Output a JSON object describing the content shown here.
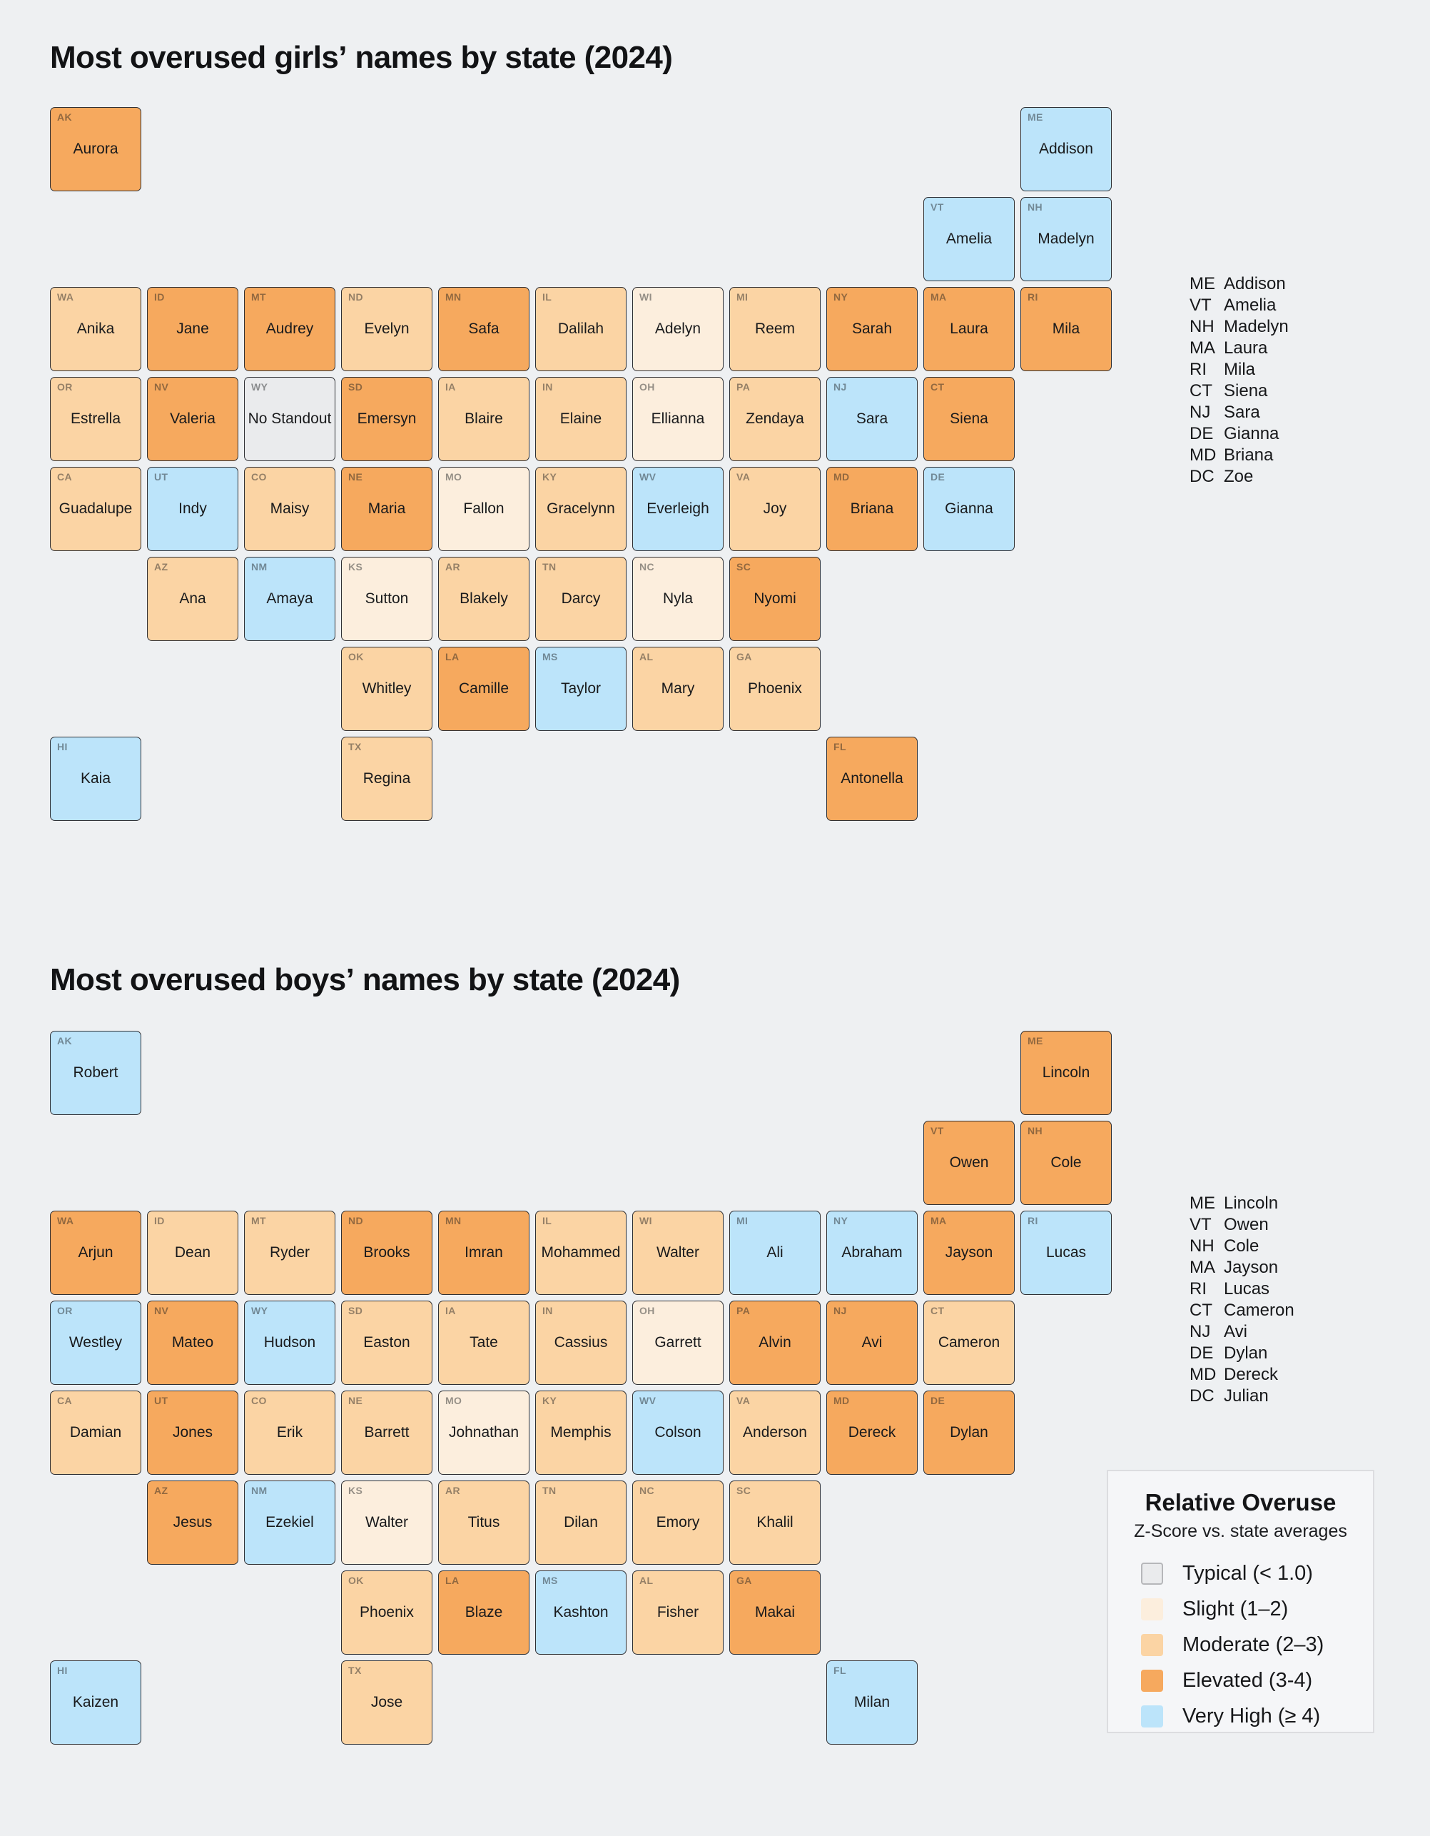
{
  "colors": {
    "page_background": "#eef0f2",
    "state_border": "#2f3034",
    "title_text": "#121315"
  },
  "legend": {
    "title": "Relative Overuse",
    "subtitle": "Z-Score vs. state averages",
    "items": [
      {
        "level": "typical",
        "label": "Typical (< 1.0)",
        "color": "#eaebed"
      },
      {
        "level": "slight",
        "label": "Slight (1–2)",
        "color": "#fceedd"
      },
      {
        "level": "moderate",
        "label": "Moderate (2–3)",
        "color": "#fbd4a4"
      },
      {
        "level": "elevated",
        "label": "Elevated (3-4)",
        "color": "#f6a95e"
      },
      {
        "level": "very_high",
        "label": "Very High (≥ 4)",
        "color": "#bce4fa"
      }
    ]
  },
  "chart_data": [
    {
      "id": "girls",
      "type": "heatmap",
      "variant": "us-state-choropleth",
      "title": "Most overused girls’ names by state (2024)",
      "title_prefix": "Most overused ",
      "title_bold": "girls’",
      "title_suffix": " names by state (2024)",
      "value_label": "Relative overuse z-score class",
      "states": [
        {
          "abbr": "WA",
          "name": "Anika",
          "level": "moderate"
        },
        {
          "abbr": "OR",
          "name": "Estrella",
          "level": "moderate"
        },
        {
          "abbr": "CA",
          "name": "Guadalupe",
          "level": "moderate"
        },
        {
          "abbr": "AK",
          "name": "Aurora",
          "level": "elevated"
        },
        {
          "abbr": "HI",
          "name": "Kaia",
          "level": "very_high"
        },
        {
          "abbr": "ID",
          "name": "Jane",
          "level": "elevated"
        },
        {
          "abbr": "NV",
          "name": "Valeria",
          "level": "elevated"
        },
        {
          "abbr": "MT",
          "name": "Audrey",
          "level": "elevated"
        },
        {
          "abbr": "WY",
          "name": "No Standout",
          "level": "typical"
        },
        {
          "abbr": "UT",
          "name": "Indy",
          "level": "very_high"
        },
        {
          "abbr": "AZ",
          "name": "Ana",
          "level": "moderate"
        },
        {
          "abbr": "NM",
          "name": "Amaya",
          "level": "very_high"
        },
        {
          "abbr": "CO",
          "name": "Maisy",
          "level": "moderate"
        },
        {
          "abbr": "ND",
          "name": "Evelyn",
          "level": "moderate"
        },
        {
          "abbr": "SD",
          "name": "Emersyn",
          "level": "elevated"
        },
        {
          "abbr": "NE",
          "name": "Maria",
          "level": "elevated"
        },
        {
          "abbr": "KS",
          "name": "Sutton",
          "level": "slight"
        },
        {
          "abbr": "OK",
          "name": "Whitley",
          "level": "moderate"
        },
        {
          "abbr": "TX",
          "name": "Regina",
          "level": "moderate"
        },
        {
          "abbr": "MN",
          "name": "Safa",
          "level": "elevated"
        },
        {
          "abbr": "IA",
          "name": "Blaire",
          "level": "moderate"
        },
        {
          "abbr": "MO",
          "name": "Fallon",
          "level": "slight"
        },
        {
          "abbr": "AR",
          "name": "Blakely",
          "level": "moderate"
        },
        {
          "abbr": "LA",
          "name": "Camille",
          "level": "elevated"
        },
        {
          "abbr": "WI",
          "name": "Adelyn",
          "level": "slight"
        },
        {
          "abbr": "IL",
          "name": "Dalilah",
          "level": "moderate"
        },
        {
          "abbr": "MI",
          "name": "Reem",
          "level": "moderate"
        },
        {
          "abbr": "IN",
          "name": "Elaine",
          "level": "moderate"
        },
        {
          "abbr": "OH",
          "name": "Ellianna",
          "level": "slight"
        },
        {
          "abbr": "KY",
          "name": "Gracelynn",
          "level": "moderate"
        },
        {
          "abbr": "TN",
          "name": "Darcy",
          "level": "moderate"
        },
        {
          "abbr": "MS",
          "name": "Taylor",
          "level": "very_high"
        },
        {
          "abbr": "AL",
          "name": "Mary",
          "level": "moderate"
        },
        {
          "abbr": "GA",
          "name": "Phoenix",
          "level": "moderate"
        },
        {
          "abbr": "FL",
          "name": "Antonella",
          "level": "elevated"
        },
        {
          "abbr": "SC",
          "name": "Nyomi",
          "level": "elevated"
        },
        {
          "abbr": "NC",
          "name": "Nyla",
          "level": "slight"
        },
        {
          "abbr": "VA",
          "name": "Joy",
          "level": "moderate"
        },
        {
          "abbr": "WV",
          "name": "Everleigh",
          "level": "very_high"
        },
        {
          "abbr": "PA",
          "name": "Zendaya",
          "level": "moderate"
        },
        {
          "abbr": "NY",
          "name": "Sarah",
          "level": "elevated"
        },
        {
          "abbr": "NJ",
          "name": "Sara",
          "level": "very_high"
        },
        {
          "abbr": "DE",
          "name": "Gianna",
          "level": "very_high"
        },
        {
          "abbr": "MD",
          "name": "Briana",
          "level": "elevated"
        },
        {
          "abbr": "ME",
          "name": "Addison",
          "level": "very_high"
        },
        {
          "abbr": "VT",
          "name": "Amelia",
          "level": "very_high"
        },
        {
          "abbr": "NH",
          "name": "Madelyn",
          "level": "very_high"
        },
        {
          "abbr": "MA",
          "name": "Laura",
          "level": "elevated"
        },
        {
          "abbr": "RI",
          "name": "Mila",
          "level": "elevated"
        },
        {
          "abbr": "CT",
          "name": "Siena",
          "level": "elevated"
        }
      ],
      "inset_list": [
        {
          "abbr": "ME",
          "name": "Addison"
        },
        {
          "abbr": "VT",
          "name": "Amelia"
        },
        {
          "abbr": "NH",
          "name": "Madelyn"
        },
        {
          "abbr": "MA",
          "name": "Laura"
        },
        {
          "abbr": "RI",
          "name": "Mila"
        },
        {
          "abbr": "CT",
          "name": "Siena"
        },
        {
          "abbr": "NJ",
          "name": "Sara"
        },
        {
          "abbr": "DE",
          "name": "Gianna"
        },
        {
          "abbr": "MD",
          "name": "Briana"
        },
        {
          "abbr": "DC",
          "name": "Zoe"
        }
      ]
    },
    {
      "id": "boys",
      "type": "heatmap",
      "variant": "us-state-choropleth",
      "title": "Most overused boys’ names by state (2024)",
      "title_prefix": "Most overused ",
      "title_bold": "boys’",
      "title_suffix": " names by state (2024)",
      "value_label": "Relative overuse z-score class",
      "states": [
        {
          "abbr": "WA",
          "name": "Arjun",
          "level": "elevated"
        },
        {
          "abbr": "OR",
          "name": "Westley",
          "level": "very_high"
        },
        {
          "abbr": "CA",
          "name": "Damian",
          "level": "moderate"
        },
        {
          "abbr": "AK",
          "name": "Robert",
          "level": "very_high"
        },
        {
          "abbr": "HI",
          "name": "Kaizen",
          "level": "very_high"
        },
        {
          "abbr": "ID",
          "name": "Dean",
          "level": "moderate"
        },
        {
          "abbr": "NV",
          "name": "Mateo",
          "level": "elevated"
        },
        {
          "abbr": "MT",
          "name": "Ryder",
          "level": "moderate"
        },
        {
          "abbr": "WY",
          "name": "Hudson",
          "level": "very_high"
        },
        {
          "abbr": "UT",
          "name": "Jones",
          "level": "elevated"
        },
        {
          "abbr": "AZ",
          "name": "Jesus",
          "level": "elevated"
        },
        {
          "abbr": "NM",
          "name": "Ezekiel",
          "level": "very_high"
        },
        {
          "abbr": "CO",
          "name": "Erik",
          "level": "moderate"
        },
        {
          "abbr": "ND",
          "name": "Brooks",
          "level": "elevated"
        },
        {
          "abbr": "SD",
          "name": "Easton",
          "level": "moderate"
        },
        {
          "abbr": "NE",
          "name": "Barrett",
          "level": "moderate"
        },
        {
          "abbr": "KS",
          "name": "Walter",
          "level": "slight"
        },
        {
          "abbr": "OK",
          "name": "Phoenix",
          "level": "moderate"
        },
        {
          "abbr": "TX",
          "name": "Jose",
          "level": "moderate"
        },
        {
          "abbr": "MN",
          "name": "Imran",
          "level": "elevated"
        },
        {
          "abbr": "IA",
          "name": "Tate",
          "level": "moderate"
        },
        {
          "abbr": "MO",
          "name": "Johnathan",
          "level": "slight"
        },
        {
          "abbr": "AR",
          "name": "Titus",
          "level": "moderate"
        },
        {
          "abbr": "LA",
          "name": "Blaze",
          "level": "elevated"
        },
        {
          "abbr": "WI",
          "name": "Walter",
          "level": "moderate"
        },
        {
          "abbr": "IL",
          "name": "Mohammed",
          "level": "moderate"
        },
        {
          "abbr": "MI",
          "name": "Ali",
          "level": "very_high"
        },
        {
          "abbr": "IN",
          "name": "Cassius",
          "level": "moderate"
        },
        {
          "abbr": "OH",
          "name": "Garrett",
          "level": "slight"
        },
        {
          "abbr": "KY",
          "name": "Memphis",
          "level": "moderate"
        },
        {
          "abbr": "TN",
          "name": "Dilan",
          "level": "moderate"
        },
        {
          "abbr": "MS",
          "name": "Kashton",
          "level": "very_high"
        },
        {
          "abbr": "AL",
          "name": "Fisher",
          "level": "moderate"
        },
        {
          "abbr": "GA",
          "name": "Makai",
          "level": "elevated"
        },
        {
          "abbr": "FL",
          "name": "Milan",
          "level": "very_high"
        },
        {
          "abbr": "SC",
          "name": "Khalil",
          "level": "moderate"
        },
        {
          "abbr": "NC",
          "name": "Emory",
          "level": "moderate"
        },
        {
          "abbr": "VA",
          "name": "Anderson",
          "level": "moderate"
        },
        {
          "abbr": "WV",
          "name": "Colson",
          "level": "very_high"
        },
        {
          "abbr": "PA",
          "name": "Alvin",
          "level": "elevated"
        },
        {
          "abbr": "NY",
          "name": "Abraham",
          "level": "very_high"
        },
        {
          "abbr": "NJ",
          "name": "Avi",
          "level": "elevated"
        },
        {
          "abbr": "DE",
          "name": "Dylan",
          "level": "elevated"
        },
        {
          "abbr": "MD",
          "name": "Dereck",
          "level": "elevated"
        },
        {
          "abbr": "ME",
          "name": "Lincoln",
          "level": "elevated"
        },
        {
          "abbr": "VT",
          "name": "Owen",
          "level": "elevated"
        },
        {
          "abbr": "NH",
          "name": "Cole",
          "level": "elevated"
        },
        {
          "abbr": "MA",
          "name": "Jayson",
          "level": "elevated"
        },
        {
          "abbr": "RI",
          "name": "Lucas",
          "level": "very_high"
        },
        {
          "abbr": "CT",
          "name": "Cameron",
          "level": "moderate"
        }
      ],
      "inset_list": [
        {
          "abbr": "ME",
          "name": "Lincoln"
        },
        {
          "abbr": "VT",
          "name": "Owen"
        },
        {
          "abbr": "NH",
          "name": "Cole"
        },
        {
          "abbr": "MA",
          "name": "Jayson"
        },
        {
          "abbr": "RI",
          "name": "Lucas"
        },
        {
          "abbr": "CT",
          "name": "Cameron"
        },
        {
          "abbr": "NJ",
          "name": "Avi"
        },
        {
          "abbr": "DE",
          "name": "Dylan"
        },
        {
          "abbr": "MD",
          "name": "Dereck"
        },
        {
          "abbr": "DC",
          "name": "Julian"
        }
      ]
    }
  ]
}
